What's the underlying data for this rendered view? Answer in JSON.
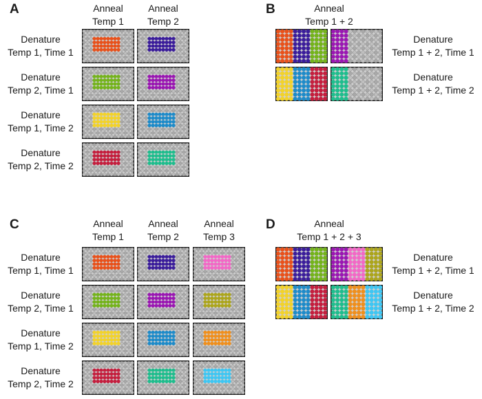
{
  "palette": {
    "orange_red": "#E8511B",
    "indigo": "#3B1D9B",
    "green": "#74B31C",
    "purple": "#9A17B2",
    "yellow": "#F2D22A",
    "blue": "#1E8BC9",
    "crimson": "#C41F3E",
    "teal": "#1FBD8D",
    "pink": "#F268C6",
    "olive": "#ACA51D",
    "amber": "#EF8F1D",
    "cyan": "#3FC6F2",
    "plate_bg": "#cfcfcf",
    "plate_border": "#1c1c1c",
    "well_light": "#bfbfbf",
    "well_dark": "#a9a9a9",
    "well_stroke": "#8a8a8a"
  },
  "panel_a": {
    "letter": "A",
    "headers": [
      {
        "line1": "Anneal",
        "line2": "Temp 1"
      },
      {
        "line1": "Anneal",
        "line2": "Temp 2"
      }
    ],
    "rows": [
      {
        "label1": "Denature",
        "label2": "Temp 1, Time 1",
        "plates": [
          {
            "block": "orange_red"
          },
          {
            "block": "indigo"
          }
        ]
      },
      {
        "label1": "Denature",
        "label2": "Temp 2, Time 1",
        "plates": [
          {
            "block": "green"
          },
          {
            "block": "purple"
          }
        ]
      },
      {
        "label1": "Denature",
        "label2": "Temp 1, Time 2",
        "plates": [
          {
            "block": "yellow"
          },
          {
            "block": "blue"
          }
        ]
      },
      {
        "label1": "Denature",
        "label2": "Temp 2, Time 2",
        "plates": [
          {
            "block": "crimson"
          },
          {
            "block": "teal"
          }
        ]
      }
    ]
  },
  "panel_b": {
    "letter": "B",
    "header": {
      "line1": "Anneal",
      "line2": "Temp 1 + 2"
    },
    "rows": [
      {
        "label1": "Denature",
        "label2": "Temp 1 + 2, Time 1",
        "plates": [
          {
            "stripes": [
              "orange_red",
              "indigo",
              "green"
            ]
          },
          {
            "stripes": [
              "purple",
              null,
              null
            ]
          }
        ]
      },
      {
        "label1": "Denature",
        "label2": "Temp 1 + 2, Time 2",
        "plates": [
          {
            "stripes": [
              "yellow",
              "blue",
              "crimson"
            ]
          },
          {
            "stripes": [
              "teal",
              null,
              null
            ]
          }
        ]
      }
    ]
  },
  "panel_c": {
    "letter": "C",
    "headers": [
      {
        "line1": "Anneal",
        "line2": "Temp 1"
      },
      {
        "line1": "Anneal",
        "line2": "Temp 2"
      },
      {
        "line1": "Anneal",
        "line2": "Temp 3"
      }
    ],
    "rows": [
      {
        "label1": "Denature",
        "label2": "Temp 1, Time 1",
        "plates": [
          {
            "block": "orange_red"
          },
          {
            "block": "indigo"
          },
          {
            "block": "pink"
          }
        ]
      },
      {
        "label1": "Denature",
        "label2": "Temp 2, Time 1",
        "plates": [
          {
            "block": "green"
          },
          {
            "block": "purple"
          },
          {
            "block": "olive"
          }
        ]
      },
      {
        "label1": "Denature",
        "label2": "Temp 1, Time 2",
        "plates": [
          {
            "block": "yellow"
          },
          {
            "block": "blue"
          },
          {
            "block": "amber"
          }
        ]
      },
      {
        "label1": "Denature",
        "label2": "Temp 2, Time 2",
        "plates": [
          {
            "block": "crimson"
          },
          {
            "block": "teal"
          },
          {
            "block": "cyan"
          }
        ]
      }
    ]
  },
  "panel_d": {
    "letter": "D",
    "header": {
      "line1": "Anneal",
      "line2": "Temp 1 + 2 + 3"
    },
    "rows": [
      {
        "label1": "Denature",
        "label2": "Temp 1 + 2, Time 1",
        "plates": [
          {
            "stripes": [
              "orange_red",
              "indigo",
              "green"
            ]
          },
          {
            "stripes": [
              "purple",
              "pink",
              "olive"
            ]
          }
        ]
      },
      {
        "label1": "Denature",
        "label2": "Temp 1 + 2, Time 2",
        "plates": [
          {
            "stripes": [
              "yellow",
              "blue",
              "crimson"
            ]
          },
          {
            "stripes": [
              "teal",
              "amber",
              "cyan"
            ]
          }
        ]
      }
    ]
  }
}
